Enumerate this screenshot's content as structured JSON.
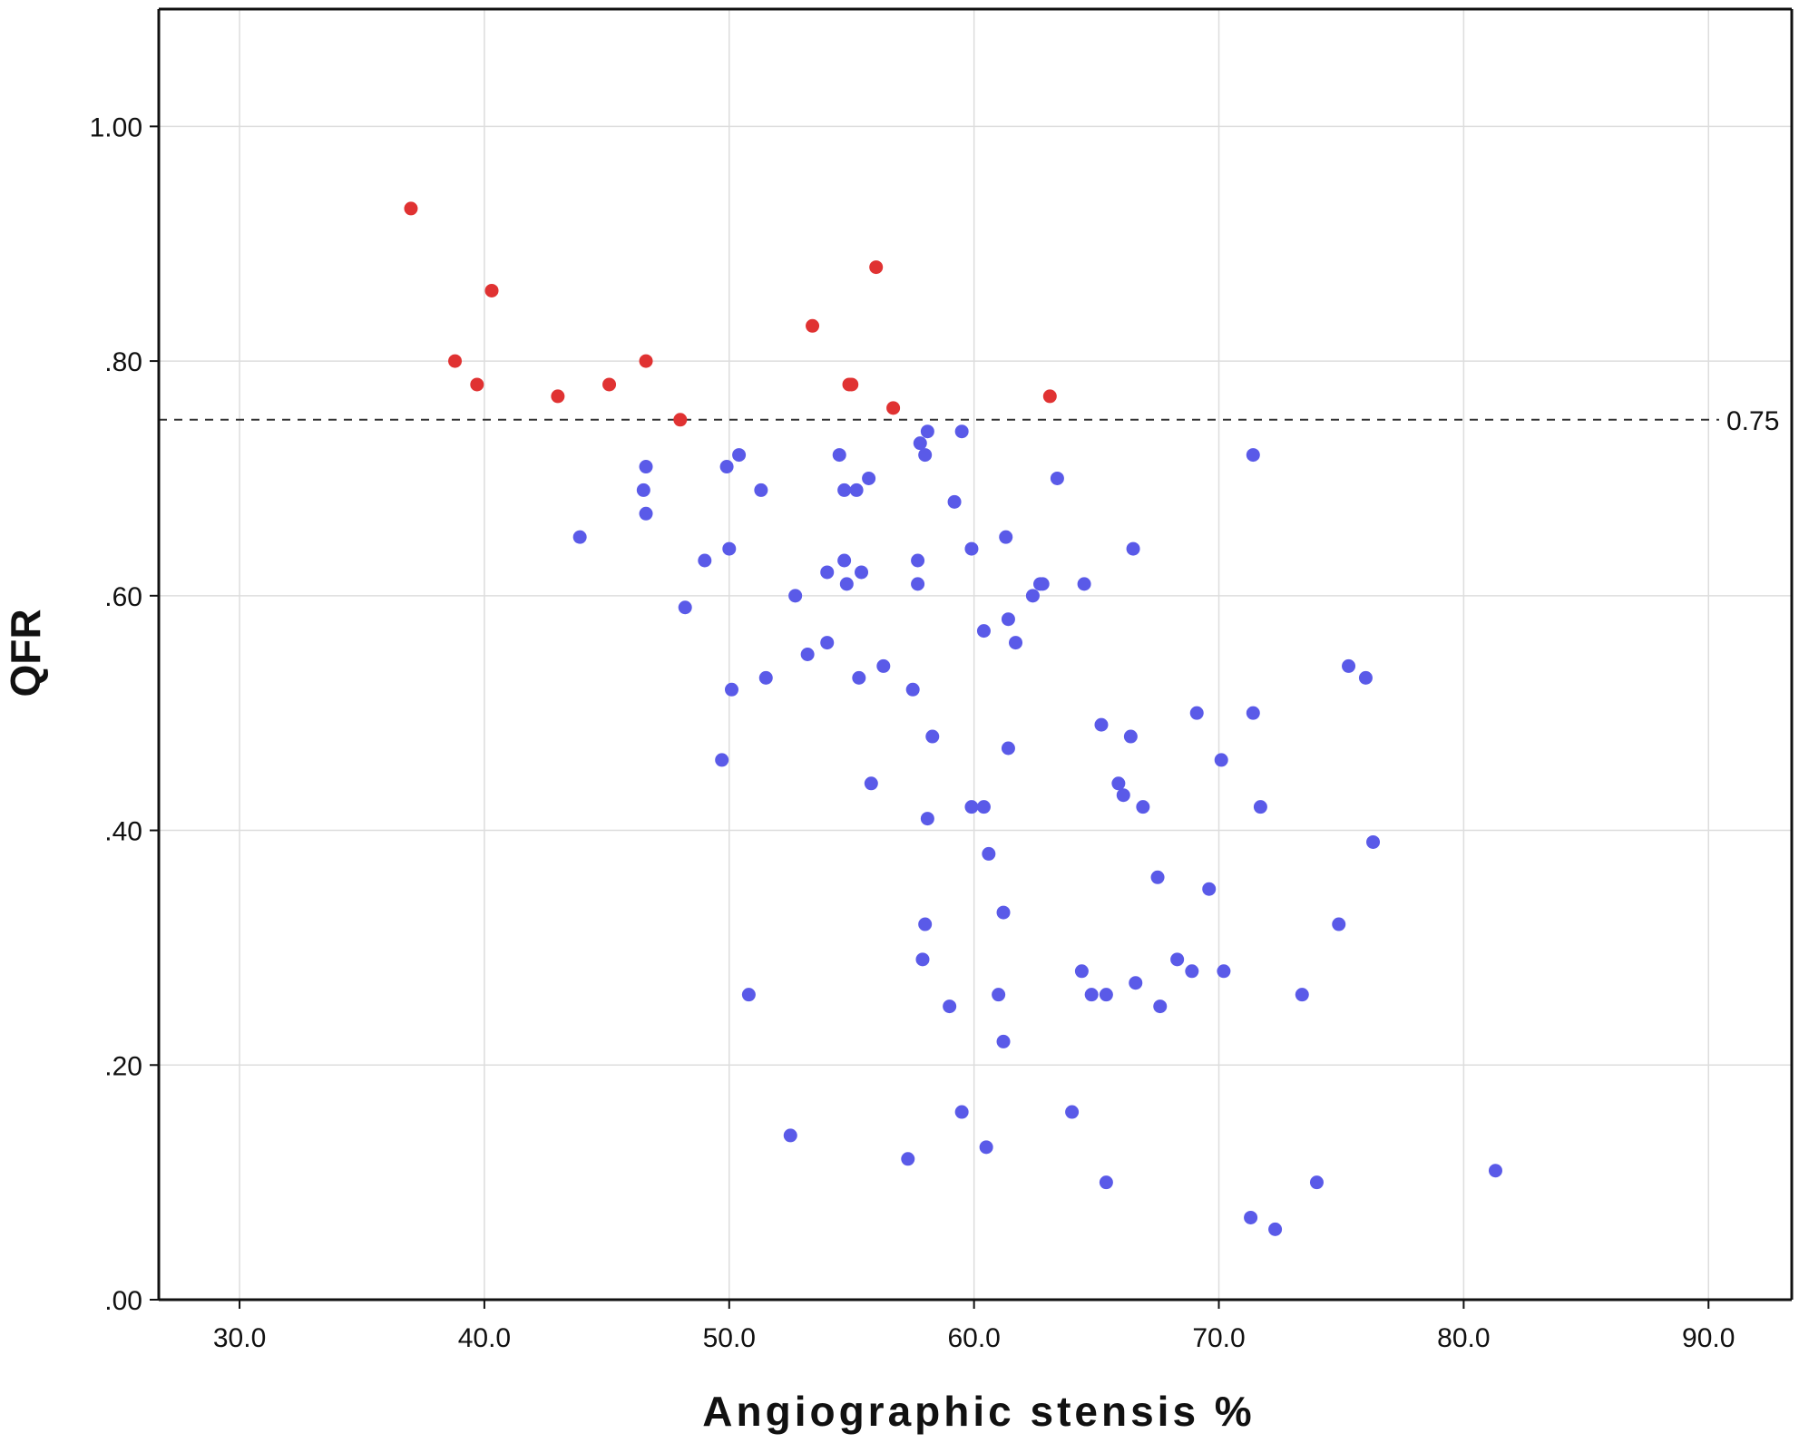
{
  "chart_data": {
    "type": "scatter",
    "title": "",
    "xlabel": "Angiographic stensis %",
    "ylabel": "QFR",
    "xlim": [
      26.7,
      93.4
    ],
    "ylim": [
      0.0,
      1.1
    ],
    "x_ticks": [
      30,
      40,
      50,
      60,
      70,
      80,
      90
    ],
    "x_tick_labels": [
      "30.0",
      "40.0",
      "50.0",
      "60.0",
      "70.0",
      "80.0",
      "90.0"
    ],
    "y_ticks": [
      0.0,
      0.2,
      0.4,
      0.6,
      0.8,
      1.0
    ],
    "y_tick_labels": [
      ".00",
      ".20",
      ".40",
      ".60",
      ".80",
      "1.00"
    ],
    "grid": true,
    "legend": "none",
    "reference_line": {
      "y": 0.75,
      "label": "0.75",
      "style": "dashed"
    },
    "series": [
      {
        "color": "#e03232",
        "points": [
          [
            37.0,
            0.93
          ],
          [
            38.8,
            0.8
          ],
          [
            39.7,
            0.78
          ],
          [
            40.3,
            0.86
          ],
          [
            43.0,
            0.77
          ],
          [
            45.1,
            0.78
          ],
          [
            46.6,
            0.8
          ],
          [
            48.0,
            0.75
          ],
          [
            53.4,
            0.83
          ],
          [
            54.9,
            0.78
          ],
          [
            55.0,
            0.78
          ],
          [
            56.0,
            0.88
          ],
          [
            56.7,
            0.76
          ],
          [
            63.1,
            0.77
          ]
        ]
      },
      {
        "color": "#5a5ae8",
        "points": [
          [
            43.9,
            0.65
          ],
          [
            46.5,
            0.69
          ],
          [
            46.6,
            0.71
          ],
          [
            46.6,
            0.67
          ],
          [
            48.2,
            0.59
          ],
          [
            49.0,
            0.63
          ],
          [
            49.7,
            0.46
          ],
          [
            49.9,
            0.71
          ],
          [
            50.0,
            0.64
          ],
          [
            50.1,
            0.52
          ],
          [
            50.4,
            0.72
          ],
          [
            50.8,
            0.26
          ],
          [
            51.3,
            0.69
          ],
          [
            51.5,
            0.53
          ],
          [
            52.5,
            0.14
          ],
          [
            52.7,
            0.6
          ],
          [
            53.2,
            0.55
          ],
          [
            54.0,
            0.62
          ],
          [
            54.0,
            0.56
          ],
          [
            54.5,
            0.72
          ],
          [
            54.7,
            0.69
          ],
          [
            54.7,
            0.63
          ],
          [
            54.8,
            0.61
          ],
          [
            55.2,
            0.69
          ],
          [
            55.3,
            0.53
          ],
          [
            55.4,
            0.62
          ],
          [
            55.7,
            0.7
          ],
          [
            55.8,
            0.44
          ],
          [
            56.3,
            0.54
          ],
          [
            57.3,
            0.12
          ],
          [
            57.5,
            0.52
          ],
          [
            57.7,
            0.63
          ],
          [
            57.7,
            0.61
          ],
          [
            57.8,
            0.73
          ],
          [
            57.9,
            0.29
          ],
          [
            58.0,
            0.72
          ],
          [
            58.0,
            0.32
          ],
          [
            58.1,
            0.74
          ],
          [
            58.1,
            0.41
          ],
          [
            58.3,
            0.48
          ],
          [
            59.0,
            0.25
          ],
          [
            59.2,
            0.68
          ],
          [
            59.5,
            0.74
          ],
          [
            59.5,
            0.16
          ],
          [
            59.9,
            0.64
          ],
          [
            59.9,
            0.42
          ],
          [
            60.4,
            0.57
          ],
          [
            60.4,
            0.42
          ],
          [
            60.5,
            0.13
          ],
          [
            60.6,
            0.38
          ],
          [
            61.0,
            0.26
          ],
          [
            61.2,
            0.33
          ],
          [
            61.2,
            0.22
          ],
          [
            61.3,
            0.65
          ],
          [
            61.4,
            0.58
          ],
          [
            61.4,
            0.47
          ],
          [
            61.7,
            0.56
          ],
          [
            62.4,
            0.6
          ],
          [
            62.7,
            0.61
          ],
          [
            62.8,
            0.61
          ],
          [
            63.4,
            0.7
          ],
          [
            64.0,
            0.16
          ],
          [
            64.4,
            0.28
          ],
          [
            64.5,
            0.61
          ],
          [
            64.8,
            0.26
          ],
          [
            65.2,
            0.49
          ],
          [
            65.4,
            0.26
          ],
          [
            65.4,
            0.1
          ],
          [
            65.9,
            0.44
          ],
          [
            66.1,
            0.43
          ],
          [
            66.4,
            0.48
          ],
          [
            66.5,
            0.64
          ],
          [
            66.6,
            0.27
          ],
          [
            66.9,
            0.42
          ],
          [
            67.5,
            0.36
          ],
          [
            67.6,
            0.25
          ],
          [
            68.3,
            0.29
          ],
          [
            68.9,
            0.28
          ],
          [
            69.1,
            0.5
          ],
          [
            69.6,
            0.35
          ],
          [
            70.1,
            0.46
          ],
          [
            70.2,
            0.28
          ],
          [
            71.3,
            0.07
          ],
          [
            71.4,
            0.72
          ],
          [
            71.4,
            0.5
          ],
          [
            71.7,
            0.42
          ],
          [
            72.3,
            0.06
          ],
          [
            73.4,
            0.26
          ],
          [
            74.0,
            0.1
          ],
          [
            74.9,
            0.32
          ],
          [
            75.3,
            0.54
          ],
          [
            76.0,
            0.53
          ],
          [
            76.3,
            0.39
          ],
          [
            81.3,
            0.11
          ]
        ]
      }
    ]
  }
}
